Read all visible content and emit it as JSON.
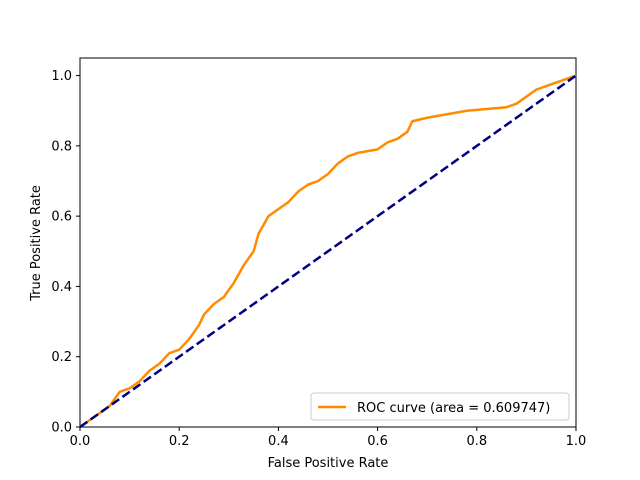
{
  "chart_data": {
    "type": "line",
    "title": "",
    "xlabel": "False Positive Rate",
    "ylabel": "True Positive Rate",
    "xlim": [
      0.0,
      1.0
    ],
    "ylim": [
      0.0,
      1.05
    ],
    "x_ticks": [
      "0.0",
      "0.2",
      "0.4",
      "0.6",
      "0.8",
      "1.0"
    ],
    "y_ticks": [
      "0.0",
      "0.2",
      "0.4",
      "0.6",
      "0.8",
      "1.0"
    ],
    "x_tick_values": [
      0.0,
      0.2,
      0.4,
      0.6,
      0.8,
      1.0
    ],
    "y_tick_values": [
      0.0,
      0.2,
      0.4,
      0.6,
      0.8,
      1.0
    ],
    "grid": false,
    "legend_position": "lower-right",
    "series": [
      {
        "name": "ROC curve (area = 0.609747)",
        "color": "#ff8c00",
        "style": "solid",
        "x": [
          0.0,
          0.02,
          0.04,
          0.06,
          0.075,
          0.08,
          0.09,
          0.1,
          0.12,
          0.14,
          0.16,
          0.18,
          0.2,
          0.22,
          0.24,
          0.25,
          0.27,
          0.29,
          0.31,
          0.33,
          0.35,
          0.36,
          0.38,
          0.4,
          0.42,
          0.44,
          0.46,
          0.48,
          0.5,
          0.52,
          0.54,
          0.56,
          0.6,
          0.62,
          0.64,
          0.66,
          0.67,
          0.7,
          0.74,
          0.78,
          0.82,
          0.86,
          0.88,
          0.9,
          0.92,
          0.95,
          0.98,
          1.0
        ],
        "y": [
          0.0,
          0.02,
          0.04,
          0.06,
          0.09,
          0.1,
          0.105,
          0.11,
          0.13,
          0.16,
          0.18,
          0.21,
          0.22,
          0.25,
          0.29,
          0.32,
          0.35,
          0.37,
          0.41,
          0.46,
          0.5,
          0.55,
          0.6,
          0.62,
          0.64,
          0.67,
          0.69,
          0.7,
          0.72,
          0.75,
          0.77,
          0.78,
          0.79,
          0.81,
          0.82,
          0.84,
          0.87,
          0.88,
          0.89,
          0.9,
          0.905,
          0.91,
          0.92,
          0.94,
          0.96,
          0.975,
          0.99,
          1.0
        ]
      },
      {
        "name": "",
        "color": "#000080",
        "style": "dashed",
        "x": [
          0.0,
          1.0
        ],
        "y": [
          0.0,
          1.0
        ]
      }
    ]
  }
}
